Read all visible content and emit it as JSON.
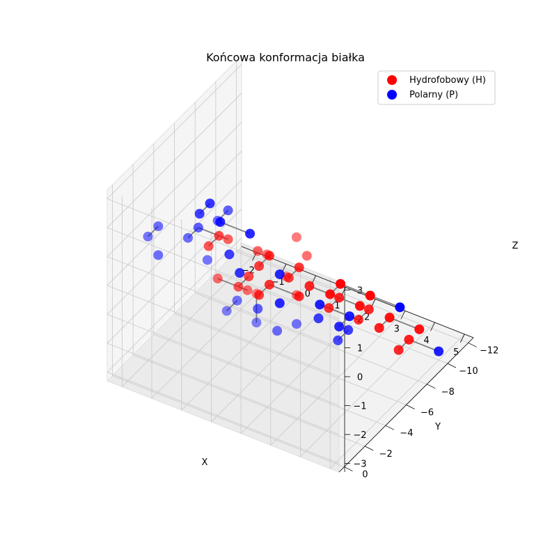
{
  "chart_data": {
    "type": "scatter",
    "title": "Końcowa konformacja białka",
    "xlabel": "X",
    "ylabel": "Y",
    "zlabel": "Z",
    "xlim": [
      -2.5,
      5.3
    ],
    "ylim": [
      -12.5,
      0.5
    ],
    "zlim": [
      -3.3,
      3.3
    ],
    "x_ticks": [
      "−2",
      "−1",
      "0",
      "1",
      "2",
      "3",
      "4",
      "5"
    ],
    "y_ticks": [
      "−12",
      "−10",
      "−8",
      "−6",
      "−4",
      "−2",
      "0"
    ],
    "z_ticks": [
      "−3",
      "−2",
      "−1",
      "0",
      "1",
      "2",
      "3"
    ],
    "grid": true,
    "legend_position": "top-right",
    "legend": [
      {
        "label": "Hydrofobowy (H)",
        "color": "#ff0000"
      },
      {
        "label": "Polarny (P)",
        "color": "#0000ff"
      }
    ],
    "series": [
      {
        "name": "Hydrofobowy (H)",
        "color": "#ff0000",
        "points": [
          [
            3,
            -2,
            3
          ],
          [
            3,
            -3,
            2
          ],
          [
            3,
            -2,
            1
          ],
          [
            2,
            -1,
            1
          ],
          [
            3,
            -1,
            2
          ],
          [
            2,
            -2,
            2
          ],
          [
            0,
            -4,
            1
          ],
          [
            0,
            -3,
            0
          ],
          [
            1,
            -3,
            0
          ],
          [
            1,
            -4,
            1
          ],
          [
            -1,
            -5,
            0
          ],
          [
            -1,
            -6,
            0
          ],
          [
            0,
            -5,
            -1
          ],
          [
            0,
            -6,
            -1
          ],
          [
            0,
            -7,
            -1
          ],
          [
            0,
            -8,
            -1
          ],
          [
            1,
            -7,
            -1
          ],
          [
            1,
            -8,
            -1
          ],
          [
            0,
            -7,
            -2
          ],
          [
            0,
            -8,
            -2
          ],
          [
            1,
            -8,
            -2
          ],
          [
            1,
            -9,
            -2
          ],
          [
            2,
            -9,
            -2
          ],
          [
            2,
            -8,
            -2
          ],
          [
            3,
            -8,
            -2
          ],
          [
            3,
            -9,
            -2
          ],
          [
            1,
            -11,
            -3
          ],
          [
            2,
            -11,
            -3
          ],
          [
            3,
            -11,
            -3
          ],
          [
            4,
            -11,
            -3
          ],
          [
            3,
            -10,
            -3
          ],
          [
            4,
            -10,
            -3
          ],
          [
            4,
            -9,
            -3
          ],
          [
            2,
            -12,
            -3
          ],
          [
            1,
            -12,
            -3
          ]
        ]
      },
      {
        "name": "Polarny (P)",
        "color": "#0000ff",
        "points": [
          [
            2,
            -1,
            0
          ],
          [
            3,
            -2,
            0
          ],
          [
            -2,
            -3,
            1
          ],
          [
            -2,
            -2,
            1
          ],
          [
            -2,
            -3,
            0
          ],
          [
            -1,
            -3,
            1
          ],
          [
            -1,
            -4,
            1
          ],
          [
            0,
            -4,
            2
          ],
          [
            0,
            -3,
            2
          ],
          [
            0,
            -2,
            1
          ],
          [
            1,
            -2,
            0
          ],
          [
            1,
            -1,
            0
          ],
          [
            2,
            -3,
            -1
          ],
          [
            1,
            -4,
            -1
          ],
          [
            -2,
            -7,
            0
          ],
          [
            -2,
            -8,
            0
          ],
          [
            -1,
            -7,
            -1
          ],
          [
            -1,
            -9,
            -1
          ],
          [
            -2,
            -9,
            -1
          ],
          [
            0,
            -9,
            -2
          ],
          [
            -1,
            -8,
            -2
          ],
          [
            0,
            -9,
            -3
          ],
          [
            2,
            -7,
            -2
          ],
          [
            3,
            -6,
            -2
          ],
          [
            3,
            -7,
            -2
          ],
          [
            1,
            -10,
            -3
          ],
          [
            2,
            -10,
            -3
          ],
          [
            2,
            -9,
            -3
          ],
          [
            5,
            -10,
            -3
          ],
          [
            3,
            -12,
            -3
          ]
        ]
      }
    ],
    "bonds_order": [
      [
        3,
        -2,
        3
      ],
      [
        3,
        -3,
        2
      ],
      [
        3,
        -2,
        1
      ],
      [
        2,
        -1,
        1
      ],
      [
        2,
        -1,
        0
      ],
      [
        3,
        -2,
        0
      ],
      [
        3,
        -1,
        2
      ],
      [
        2,
        -2,
        2
      ],
      [
        0,
        -4,
        2
      ],
      [
        0,
        -3,
        2
      ],
      [
        0,
        -2,
        1
      ],
      [
        0,
        -3,
        0
      ],
      [
        1,
        -3,
        0
      ],
      [
        1,
        -4,
        1
      ],
      [
        1,
        -2,
        0
      ],
      [
        1,
        -1,
        0
      ],
      [
        2,
        -3,
        -1
      ],
      [
        1,
        -4,
        -1
      ],
      [
        -2,
        -3,
        1
      ],
      [
        -2,
        -2,
        1
      ],
      [
        -1,
        -3,
        1
      ],
      [
        -1,
        -4,
        1
      ],
      [
        0,
        -4,
        1
      ],
      [
        -2,
        -3,
        0
      ],
      [
        -1,
        -5,
        0
      ],
      [
        -1,
        -6,
        0
      ],
      [
        0,
        -5,
        -1
      ],
      [
        0,
        -6,
        -1
      ],
      [
        -1,
        -7,
        -1
      ],
      [
        -2,
        -7,
        0
      ],
      [
        -2,
        -8,
        0
      ],
      [
        -1,
        -9,
        -1
      ],
      [
        -2,
        -9,
        -1
      ],
      [
        0,
        -7,
        -1
      ],
      [
        0,
        -8,
        -1
      ],
      [
        1,
        -7,
        -1
      ],
      [
        1,
        -8,
        -1
      ],
      [
        0,
        -7,
        -2
      ],
      [
        0,
        -8,
        -2
      ],
      [
        1,
        -8,
        -2
      ],
      [
        0,
        -9,
        -2
      ],
      [
        -1,
        -8,
        -2
      ],
      [
        0,
        -9,
        -3
      ],
      [
        2,
        -7,
        -2
      ],
      [
        3,
        -6,
        -2
      ],
      [
        3,
        -7,
        -2
      ],
      [
        1,
        -9,
        -2
      ],
      [
        2,
        -9,
        -2
      ],
      [
        2,
        -8,
        -2
      ],
      [
        3,
        -8,
        -2
      ],
      [
        3,
        -9,
        -2
      ],
      [
        1,
        -10,
        -3
      ],
      [
        2,
        -10,
        -3
      ],
      [
        2,
        -9,
        -3
      ],
      [
        4,
        -9,
        -3
      ],
      [
        4,
        -10,
        -3
      ],
      [
        5,
        -10,
        -3
      ],
      [
        3,
        -10,
        -3
      ],
      [
        3,
        -11,
        -3
      ],
      [
        4,
        -11,
        -3
      ],
      [
        2,
        -11,
        -3
      ],
      [
        1,
        -11,
        -3
      ],
      [
        1,
        -12,
        -3
      ],
      [
        2,
        -12,
        -3
      ],
      [
        3,
        -12,
        -3
      ]
    ]
  }
}
